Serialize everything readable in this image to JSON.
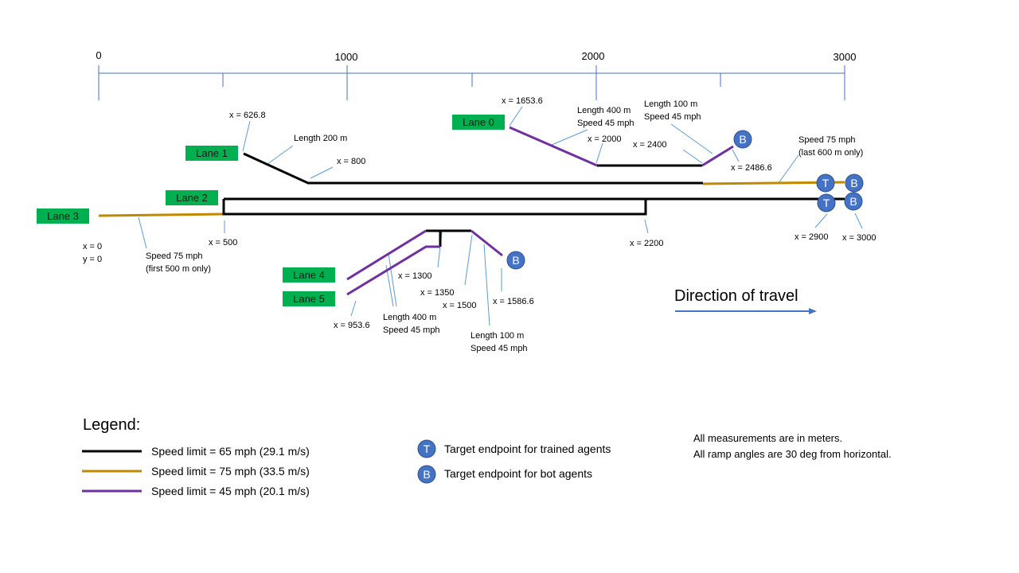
{
  "colors": {
    "speed65": "#000000",
    "speed75": "#c08a00",
    "speed45": "#7030a0",
    "lane_label_bg": "#00b050",
    "badge": "#4472c4",
    "axis": "#4472c4",
    "leader": "#5b9bd5"
  },
  "axis": {
    "ticks": [
      "0",
      "1000",
      "2000",
      "3000"
    ]
  },
  "lanes": {
    "lane0": "Lane 0",
    "lane1": "Lane 1",
    "lane2": "Lane 2",
    "lane3": "Lane 3",
    "lane4": "Lane 4",
    "lane5": "Lane 5"
  },
  "annotations": {
    "x_626_8": "x = 626.8",
    "lane1_length": "Length  200 m",
    "x_800": "x = 800",
    "x_1653_6": "x = 1653.6",
    "lane0_length_400": "Length  400 m",
    "lane0_speed_45a": "Speed 45 mph",
    "lane0_length_100": "Length  100 m",
    "lane0_speed_45b": "Speed 45 mph",
    "x_2000": "x = 2000",
    "x_2400": "x = 2400",
    "x_2486_6": "x = 2486.6",
    "speed75_last_1": "Speed 75 mph",
    "speed75_last_2": "(last 600 m only)",
    "x_0": "x = 0",
    "y_0": "y = 0",
    "x_500": "x = 500",
    "speed75_first_1": "Speed 75 mph",
    "speed75_first_2": "(first 500 m only)",
    "x_2200": "x = 2200",
    "x_2900": "x = 2900",
    "x_3000": "x = 3000",
    "x_1300": "x = 1300",
    "x_1350": "x = 1350",
    "x_1500": "x = 1500",
    "x_1586_6": "x = 1586.6",
    "x_953_6": "x = 953.6",
    "ramp_length_400": "Length  400 m",
    "ramp_speed_45a": "Speed 45 mph",
    "ramp_length_100": "Length  100 m",
    "ramp_speed_45b": "Speed 45 mph"
  },
  "badges": {
    "T": "T",
    "B": "B"
  },
  "direction": {
    "label": "Direction of travel"
  },
  "legend": {
    "title": "Legend:",
    "speed65": "Speed limit = 65 mph (29.1 m/s)",
    "speed75": "Speed limit = 75 mph (33.5 m/s)",
    "speed45": "Speed limit = 45 mph (20.1 m/s)",
    "trained": "Target endpoint for trained agents",
    "bot": "Target endpoint for bot agents"
  },
  "notes": {
    "line1": "All measurements are in meters.",
    "line2": "All ramp angles are 30 deg from horizontal."
  }
}
